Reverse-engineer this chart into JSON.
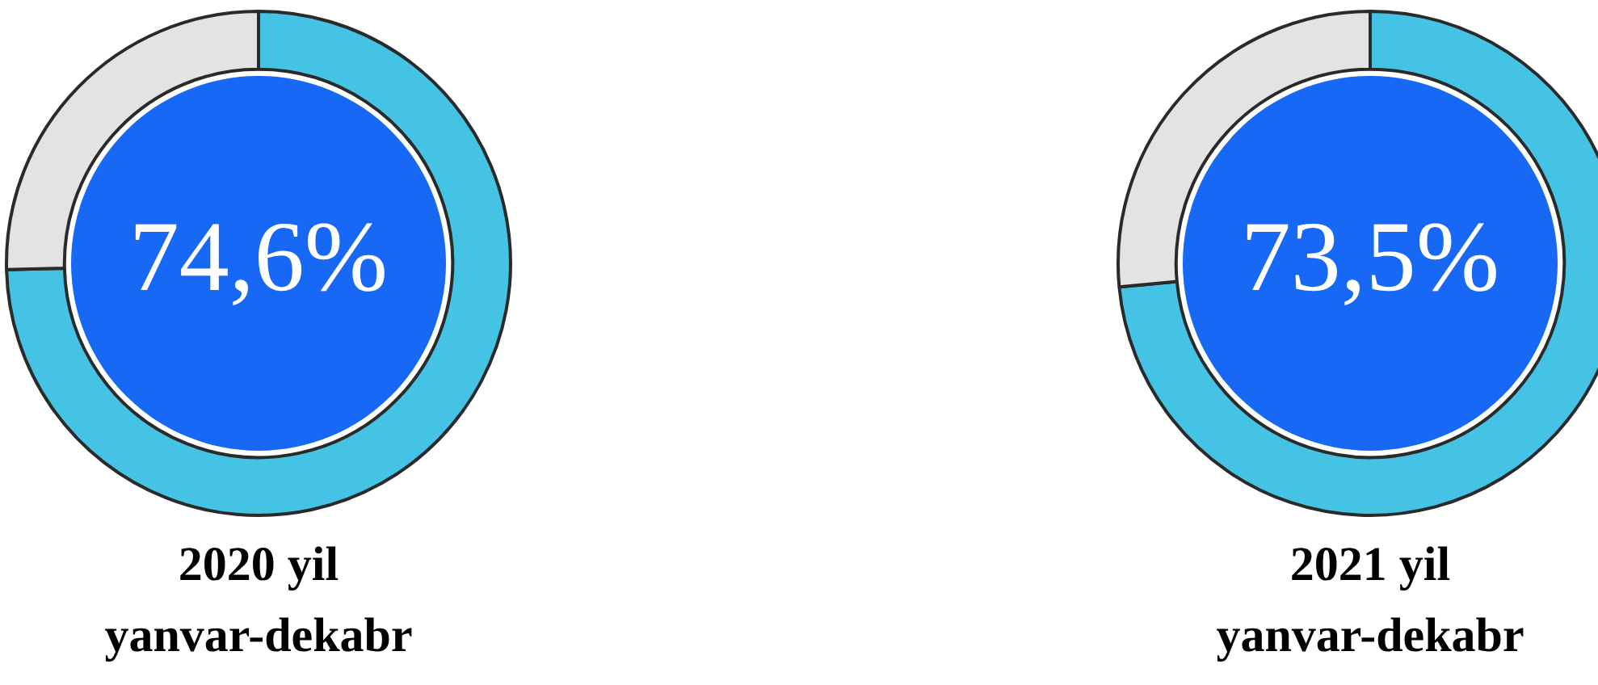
{
  "chart_data": [
    {
      "type": "donut",
      "categories": [
        null,
        null
      ],
      "values": [
        74.6,
        25.4
      ],
      "colors": [
        "#45c3e5",
        "#e3e3e3"
      ],
      "value_labels": [
        "74,6%",
        null
      ],
      "title": "2020 yil\nyanvar-dekabr"
    },
    {
      "type": "donut",
      "categories": [
        null,
        null
      ],
      "values": [
        73.5,
        26.5
      ],
      "colors": [
        "#45c3e5",
        "#e3e3e3"
      ],
      "value_labels": [
        "73,5%",
        null
      ],
      "title": "2021 yil\nyanvar-dekabr"
    }
  ]
}
